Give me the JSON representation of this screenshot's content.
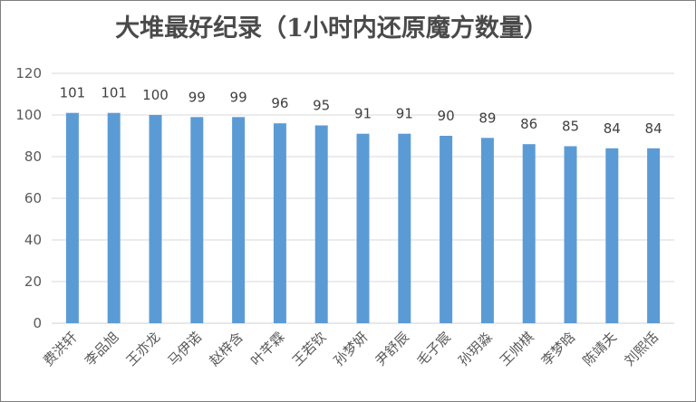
{
  "chart_data": {
    "type": "bar",
    "title": "大堆最好纪录（1小时内还原魔方数量）",
    "xlabel": "",
    "ylabel": "",
    "ylim": [
      0,
      120
    ],
    "yticks": [
      0,
      20,
      40,
      60,
      80,
      100,
      120
    ],
    "grid": true,
    "legend": "none",
    "bar_color": "#5b9bd5",
    "categories": [
      "费洪轩",
      "李品旭",
      "王亦龙",
      "马伊诺",
      "赵梓含",
      "叶芊霖",
      "王若钦",
      "孙梦妍",
      "尹舒辰",
      "毛子宸",
      "孙玥淼",
      "王帅棋",
      "李梦晗",
      "陈靖夫",
      "刘熙恬"
    ],
    "values": [
      101,
      101,
      100,
      99,
      99,
      96,
      95,
      91,
      91,
      90,
      89,
      86,
      85,
      84,
      84
    ]
  }
}
